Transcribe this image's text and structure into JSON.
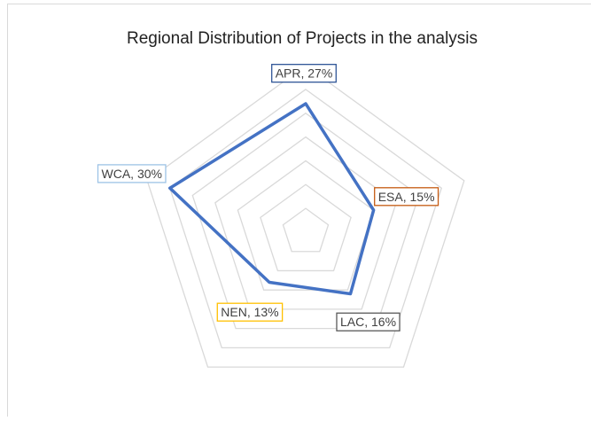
{
  "chart_data": {
    "type": "radar",
    "title": "Regional Distribution of Projects in the analysis",
    "values": [
      27,
      15,
      16,
      13,
      30
    ],
    "value_labels": [
      "APR, 27%",
      "ESA, 15%",
      "LAC, 16%",
      "NEN, 13%",
      "WCA, 30%"
    ],
    "label_colors": [
      "#2f5597",
      "#c55a11",
      "#595959",
      "#ffc000",
      "#9dc3e6"
    ],
    "color": "#4472c4",
    "ylim": [
      0,
      35
    ],
    "yticks": [
      0,
      5,
      10,
      15,
      20,
      25,
      30,
      35
    ],
    "grid": true
  }
}
